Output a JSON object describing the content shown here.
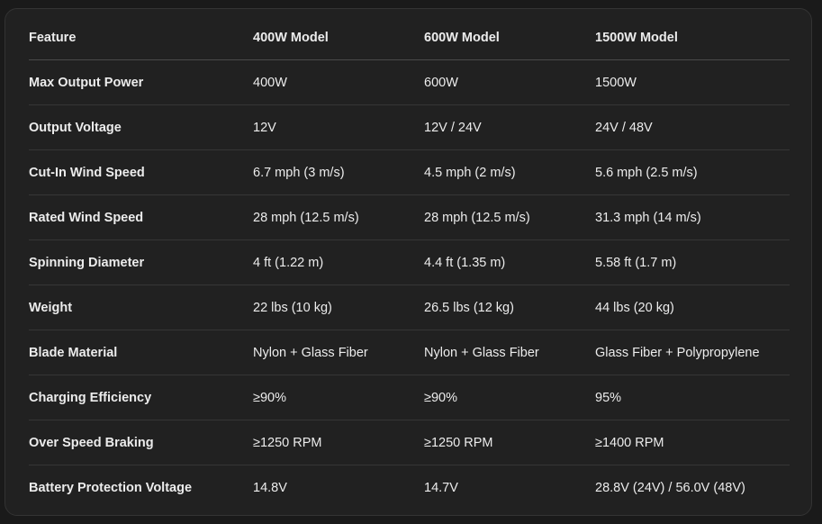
{
  "table": {
    "headers": [
      "Feature",
      "400W Model",
      "600W Model",
      "1500W Model"
    ],
    "rows": [
      [
        "Max Output Power",
        "400W",
        "600W",
        "1500W"
      ],
      [
        "Output Voltage",
        "12V",
        "12V / 24V",
        "24V / 48V"
      ],
      [
        "Cut-In Wind Speed",
        "6.7 mph (3 m/s)",
        "4.5 mph (2 m/s)",
        "5.6 mph (2.5 m/s)"
      ],
      [
        "Rated Wind Speed",
        "28 mph (12.5 m/s)",
        "28 mph (12.5 m/s)",
        "31.3 mph (14 m/s)"
      ],
      [
        "Spinning Diameter",
        "4 ft (1.22 m)",
        "4.4 ft (1.35 m)",
        "5.58 ft (1.7 m)"
      ],
      [
        "Weight",
        "22 lbs (10 kg)",
        "26.5 lbs (12 kg)",
        "44 lbs (20 kg)"
      ],
      [
        "Blade Material",
        "Nylon + Glass Fiber",
        "Nylon + Glass Fiber",
        "Glass Fiber + Polypropylene"
      ],
      [
        "Charging Efficiency",
        "≥90%",
        "≥90%",
        "95%"
      ],
      [
        "Over Speed Braking",
        "≥1250 RPM",
        "≥1250 RPM",
        "≥1400 RPM"
      ],
      [
        "Battery Protection Voltage",
        "14.8V",
        "14.7V",
        "28.8V (24V) / 56.0V (48V)"
      ]
    ]
  }
}
